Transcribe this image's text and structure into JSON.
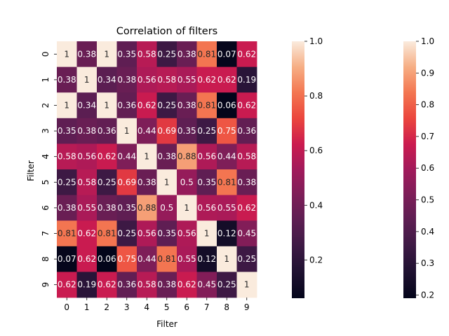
{
  "chart_data": {
    "type": "heatmap",
    "title": "Correlation of filters",
    "xlabel": "Filter",
    "ylabel": "Filter",
    "x_categories": [
      "0",
      "1",
      "2",
      "3",
      "4",
      "5",
      "6",
      "7",
      "8",
      "9"
    ],
    "y_categories": [
      "0",
      "1",
      "2",
      "3",
      "4",
      "5",
      "6",
      "7",
      "8",
      "9"
    ],
    "values": [
      [
        1.0,
        0.38,
        1.0,
        0.35,
        0.58,
        0.25,
        0.38,
        0.81,
        0.07,
        0.62
      ],
      [
        0.38,
        1.0,
        0.34,
        0.38,
        0.56,
        0.58,
        0.55,
        0.62,
        0.62,
        0.19
      ],
      [
        1.0,
        0.34,
        1.0,
        0.36,
        0.62,
        0.25,
        0.38,
        0.81,
        0.06,
        0.62
      ],
      [
        0.35,
        0.38,
        0.36,
        1.0,
        0.44,
        0.69,
        0.35,
        0.25,
        0.75,
        0.36
      ],
      [
        0.58,
        0.56,
        0.62,
        0.44,
        1.0,
        0.38,
        0.88,
        0.56,
        0.44,
        0.58
      ],
      [
        0.25,
        0.58,
        0.25,
        0.69,
        0.38,
        1.0,
        0.5,
        0.35,
        0.81,
        0.38
      ],
      [
        0.38,
        0.55,
        0.38,
        0.35,
        0.88,
        0.5,
        1.0,
        0.56,
        0.55,
        0.62
      ],
      [
        0.81,
        0.62,
        0.81,
        0.25,
        0.56,
        0.35,
        0.56,
        1.0,
        0.12,
        0.45
      ],
      [
        0.07,
        0.62,
        0.06,
        0.75,
        0.44,
        0.81,
        0.55,
        0.12,
        1.0,
        0.25
      ],
      [
        0.62,
        0.19,
        0.62,
        0.36,
        0.58,
        0.38,
        0.62,
        0.45,
        0.25,
        1.0
      ]
    ],
    "colorbars": [
      {
        "vmin": 0.06,
        "vmax": 1.0,
        "ticks": [
          "0.2",
          "0.4",
          "0.6",
          "0.8",
          "1.0"
        ],
        "tick_values": [
          0.2,
          0.4,
          0.6,
          0.8,
          1.0
        ]
      },
      {
        "vmin": 0.19,
        "vmax": 1.0,
        "ticks": [
          "0.2",
          "0.3",
          "0.4",
          "0.5",
          "0.6",
          "0.7",
          "0.8",
          "0.9",
          "1.0"
        ],
        "tick_values": [
          0.2,
          0.3,
          0.4,
          0.5,
          0.6,
          0.7,
          0.8,
          0.9,
          1.0
        ]
      }
    ],
    "colormap": "rocket",
    "grid": false
  }
}
